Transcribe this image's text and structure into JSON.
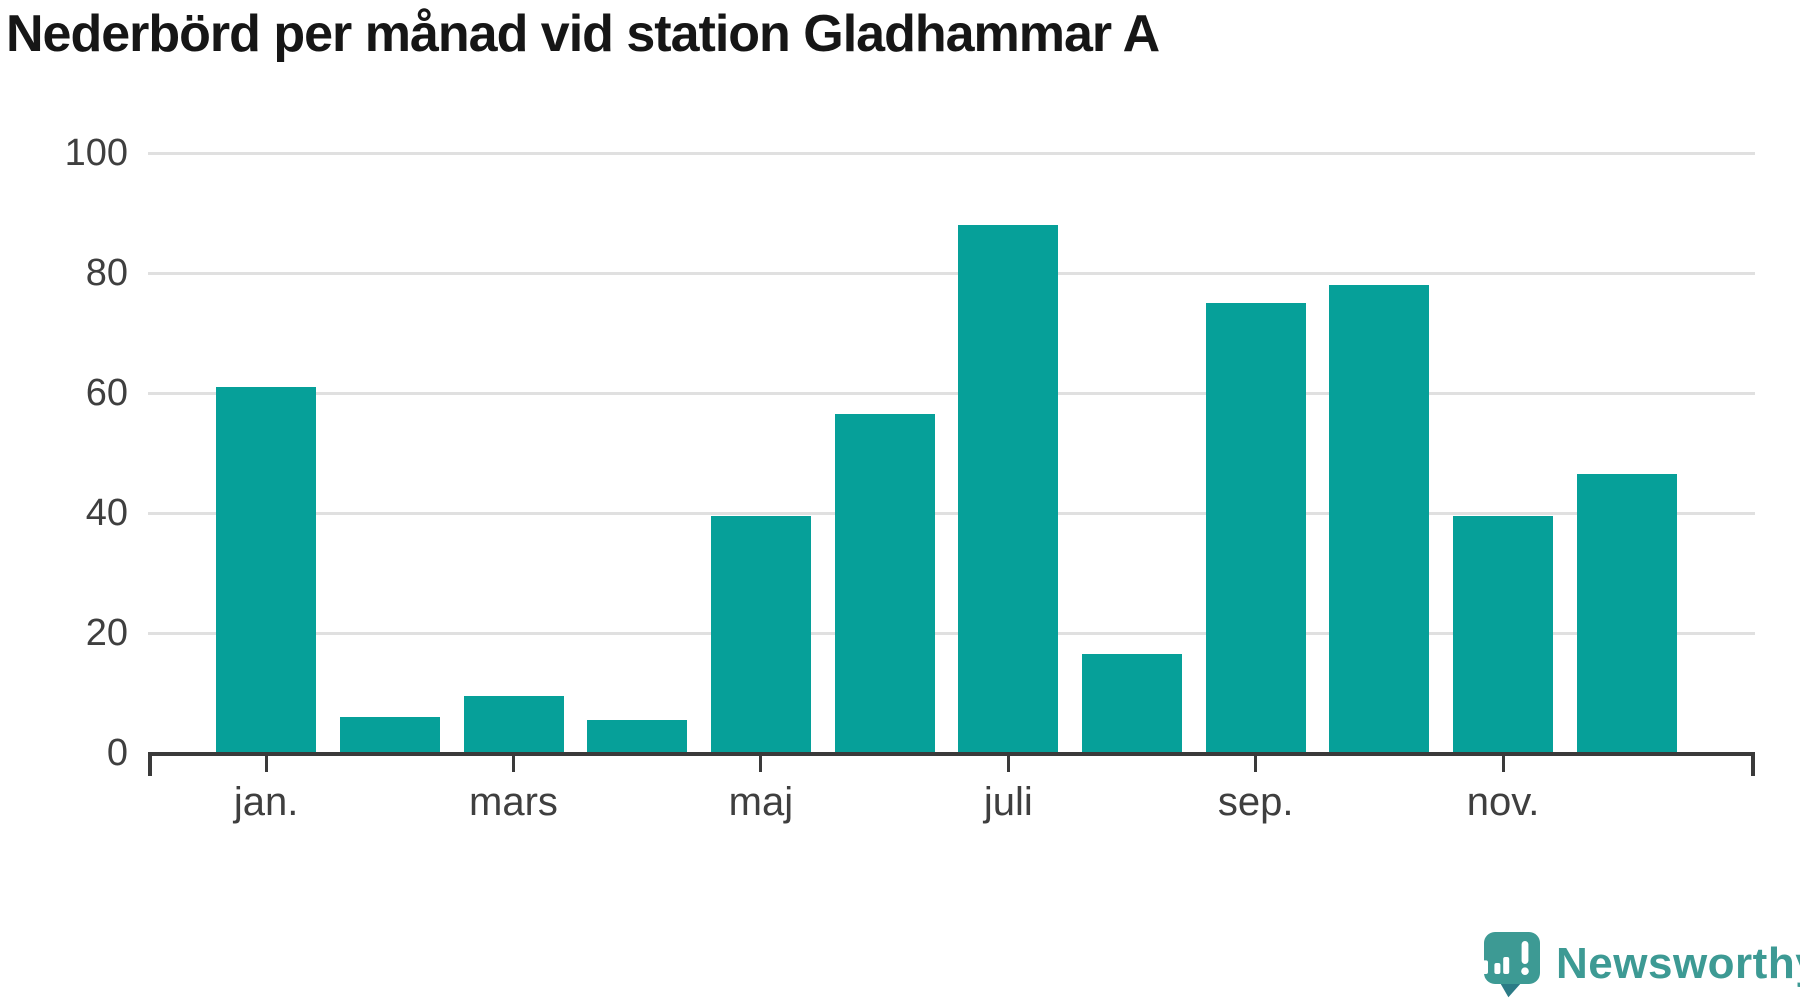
{
  "chart_data": {
    "type": "bar",
    "title": "Nederbörd per månad vid station Gladhammar A",
    "bar_count": 12,
    "values": [
      61,
      6,
      9.5,
      5.5,
      39.5,
      56.5,
      88,
      16.5,
      75,
      78,
      39.5,
      46.5
    ],
    "x_tick_labels": [
      "jan.",
      "mars",
      "maj",
      "juli",
      "sep.",
      "nov."
    ],
    "x_tick_bar_indices": [
      0,
      2,
      4,
      6,
      8,
      10
    ],
    "yticks": [
      0,
      20,
      40,
      60,
      80,
      100
    ],
    "ylim": [
      0,
      100
    ],
    "grid": true,
    "legend": false
  },
  "brand": {
    "wordmark": "Newsworthy"
  },
  "colors": {
    "bar": "#06a099",
    "grid": "#e0e0e0",
    "axis": "#3a3a3a",
    "tick_label": "#3f3f3f",
    "title": "#161616",
    "logo": "#3d9a94",
    "logo_tail": "#2c7b86",
    "logo_glyph": "#ffffff"
  }
}
